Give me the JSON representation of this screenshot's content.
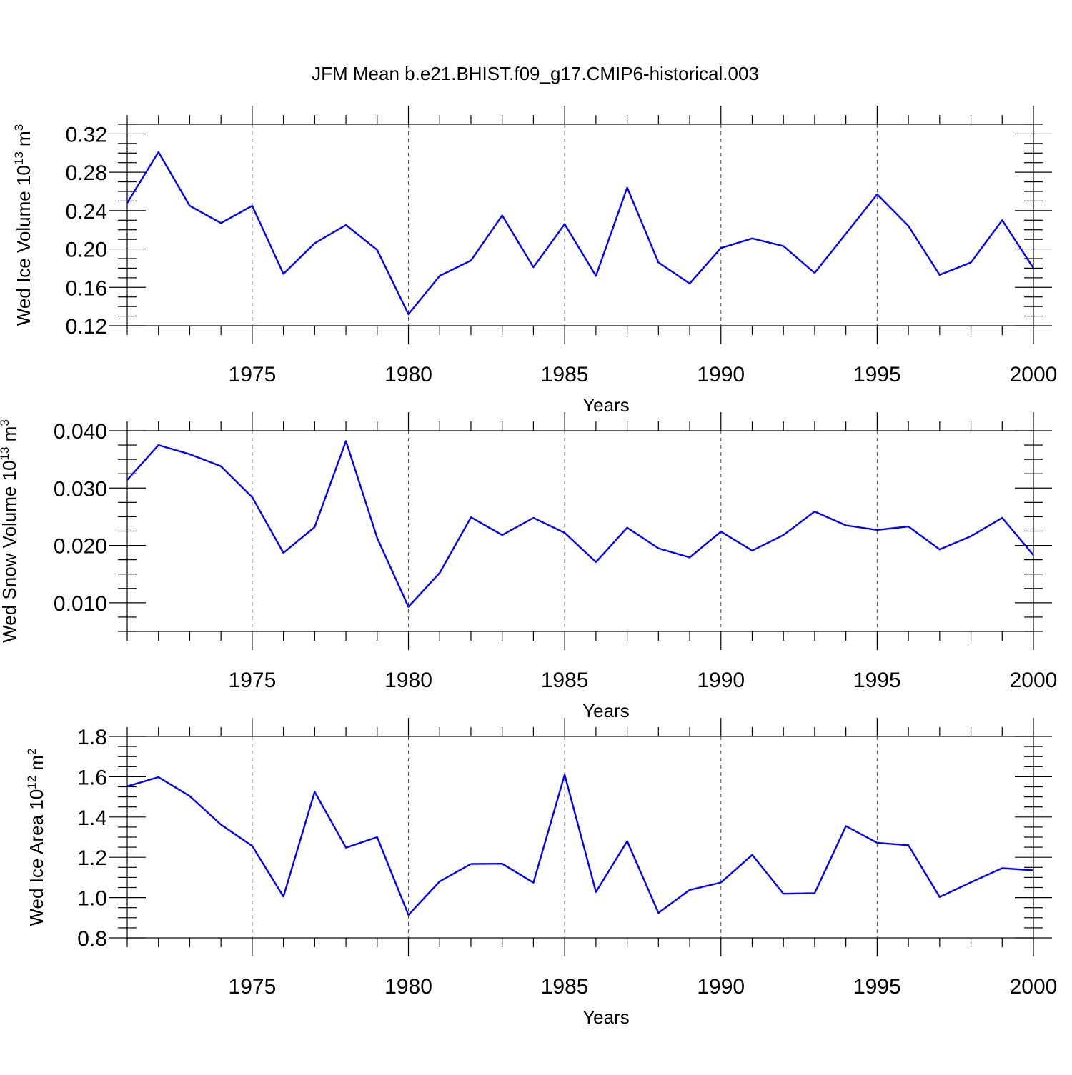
{
  "title": "JFM Mean b.e21.BHIST.f09_g17.CMIP6-historical.003",
  "colors": {
    "line": "#0000ff",
    "axis": "#000000",
    "background": "#ffffff"
  },
  "chart_data": [
    {
      "id": "ice-volume",
      "type": "line",
      "title": "JFM Mean b.e21.BHIST.f09_g17.CMIP6-historical.003",
      "xlabel": "Years",
      "ylabel_main": "Wed Ice Volume 10",
      "ylabel_exp": "13",
      "ylabel_unit": " m",
      "ylabel_unit_exp": "3",
      "xlim": [
        1971,
        2000
      ],
      "ylim": [
        0.12,
        0.33
      ],
      "yticks": [
        0.12,
        0.16,
        0.2,
        0.24,
        0.28,
        0.32
      ],
      "ytick_labels": [
        "0.12",
        "0.16",
        "0.20",
        "0.24",
        "0.28",
        "0.32"
      ],
      "y_minor_step": 0.01,
      "xticks": [
        1975,
        1980,
        1985,
        1990,
        1995,
        2000
      ],
      "xtick_labels": [
        "1975",
        "1980",
        "1985",
        "1990",
        "1995",
        "2000"
      ],
      "x": [
        1971,
        1972,
        1973,
        1974,
        1975,
        1976,
        1977,
        1978,
        1979,
        1980,
        1981,
        1982,
        1983,
        1984,
        1985,
        1986,
        1987,
        1988,
        1989,
        1990,
        1991,
        1992,
        1993,
        1994,
        1995,
        1996,
        1997,
        1998,
        1999,
        2000
      ],
      "values": [
        0.248,
        0.301,
        0.245,
        0.227,
        0.245,
        0.174,
        0.206,
        0.225,
        0.199,
        0.132,
        0.172,
        0.188,
        0.235,
        0.181,
        0.226,
        0.172,
        0.264,
        0.186,
        0.164,
        0.201,
        0.211,
        0.203,
        0.175,
        0.216,
        0.257,
        0.224,
        0.173,
        0.186,
        0.23,
        0.18
      ]
    },
    {
      "id": "snow-volume",
      "type": "line",
      "xlabel": "Years",
      "ylabel_main": "Wed Snow Volume 10",
      "ylabel_exp": "13",
      "ylabel_unit": " m",
      "ylabel_unit_exp": "3",
      "xlim": [
        1971,
        2000
      ],
      "ylim": [
        0.005,
        0.04
      ],
      "yticks": [
        0.01,
        0.02,
        0.03,
        0.04
      ],
      "ytick_labels": [
        "0.010",
        "0.020",
        "0.030",
        "0.040"
      ],
      "y_minor_step": 0.0025,
      "xticks": [
        1975,
        1980,
        1985,
        1990,
        1995,
        2000
      ],
      "xtick_labels": [
        "1975",
        "1980",
        "1985",
        "1990",
        "1995",
        "2000"
      ],
      "x": [
        1971,
        1972,
        1973,
        1974,
        1975,
        1976,
        1977,
        1978,
        1979,
        1980,
        1981,
        1982,
        1983,
        1984,
        1985,
        1986,
        1987,
        1988,
        1989,
        1990,
        1991,
        1992,
        1993,
        1994,
        1995,
        1996,
        1997,
        1998,
        1999,
        2000
      ],
      "values": [
        0.0314,
        0.0375,
        0.0359,
        0.0338,
        0.0284,
        0.0187,
        0.0232,
        0.0382,
        0.0213,
        0.0093,
        0.0152,
        0.0249,
        0.0218,
        0.0248,
        0.0222,
        0.0171,
        0.0231,
        0.0195,
        0.0179,
        0.0224,
        0.0191,
        0.0218,
        0.0259,
        0.0235,
        0.0227,
        0.0233,
        0.0193,
        0.0216,
        0.0248,
        0.0183
      ]
    },
    {
      "id": "ice-area",
      "type": "line",
      "xlabel": "Years",
      "ylabel_main": "Wed Ice Area 10",
      "ylabel_exp": "12",
      "ylabel_unit": " m",
      "ylabel_unit_exp": "2",
      "xlim": [
        1971,
        2000
      ],
      "ylim": [
        0.8,
        1.8
      ],
      "yticks": [
        0.8,
        1.0,
        1.2,
        1.4,
        1.6,
        1.8
      ],
      "ytick_labels": [
        "0.8",
        "1.0",
        "1.2",
        "1.4",
        "1.6",
        "1.8"
      ],
      "y_minor_step": 0.05,
      "xticks": [
        1975,
        1980,
        1985,
        1990,
        1995,
        2000
      ],
      "xtick_labels": [
        "1975",
        "1980",
        "1985",
        "1990",
        "1995",
        "2000"
      ],
      "x": [
        1971,
        1972,
        1973,
        1974,
        1975,
        1976,
        1977,
        1978,
        1979,
        1980,
        1981,
        1982,
        1983,
        1984,
        1985,
        1986,
        1987,
        1988,
        1989,
        1990,
        1991,
        1992,
        1993,
        1994,
        1995,
        1996,
        1997,
        1998,
        1999,
        2000
      ],
      "values": [
        1.552,
        1.598,
        1.504,
        1.362,
        1.256,
        1.005,
        1.525,
        1.248,
        1.3,
        0.914,
        1.08,
        1.167,
        1.168,
        1.074,
        1.61,
        1.028,
        1.28,
        0.924,
        1.038,
        1.075,
        1.212,
        1.019,
        1.022,
        1.355,
        1.272,
        1.26,
        1.003,
        1.076,
        1.146,
        1.135
      ]
    }
  ]
}
